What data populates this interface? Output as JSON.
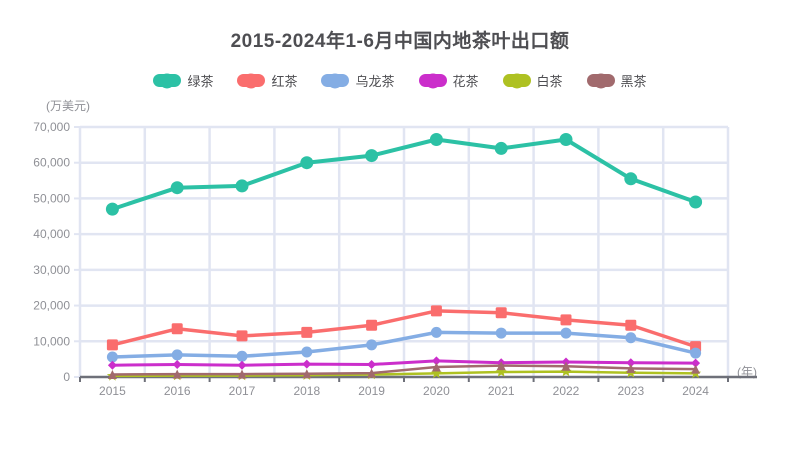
{
  "title": "2015-2024年1-6月中国内地茶叶出口额",
  "y_axis_unit": "(万美元)",
  "x_axis_unit": "(年)",
  "palette": {
    "background": "#ffffff",
    "title_color": "#4e4e52",
    "grid_color": "#e1e5f2",
    "axis_line_color": "#6e7079",
    "tick_label_color": "#8f9096"
  },
  "chart_data": {
    "type": "line",
    "title": "2015-2024年1-6月中国内地茶叶出口额",
    "xlabel": "(年)",
    "ylabel": "(万美元)",
    "ylim": [
      0,
      70000
    ],
    "y_tick_interval": 10000,
    "grid": true,
    "legend_position": "top",
    "categories": [
      "2015",
      "2016",
      "2017",
      "2018",
      "2019",
      "2020",
      "2021",
      "2022",
      "2023",
      "2024"
    ],
    "series": [
      {
        "name": "绿茶",
        "color": "#2cc1a5",
        "symbol": "circle",
        "values": [
          47000,
          53000,
          53500,
          60000,
          62000,
          66500,
          64000,
          66500,
          55500,
          49000
        ]
      },
      {
        "name": "红茶",
        "color": "#fa6d6d",
        "symbol": "rect",
        "values": [
          9000,
          13500,
          11500,
          12500,
          14500,
          18500,
          18000,
          16000,
          14500,
          8500
        ]
      },
      {
        "name": "乌龙茶",
        "color": "#84ade4",
        "symbol": "circle",
        "values": [
          5600,
          6200,
          5800,
          7000,
          9000,
          12500,
          12300,
          12300,
          11000,
          6700
        ]
      },
      {
        "name": "花茶",
        "color": "#cb2ecb",
        "symbol": "diamond",
        "values": [
          3300,
          3500,
          3300,
          3600,
          3500,
          4500,
          4000,
          4200,
          4000,
          3900
        ]
      },
      {
        "name": "白茶",
        "color": "#aec122",
        "symbol": "star",
        "values": [
          300,
          400,
          400,
          500,
          700,
          1000,
          1400,
          1500,
          1200,
          1000
        ]
      },
      {
        "name": "黑茶",
        "color": "#a16a6d",
        "symbol": "triangle",
        "values": [
          700,
          800,
          800,
          900,
          1100,
          2800,
          3200,
          3000,
          2400,
          2200
        ]
      }
    ]
  }
}
